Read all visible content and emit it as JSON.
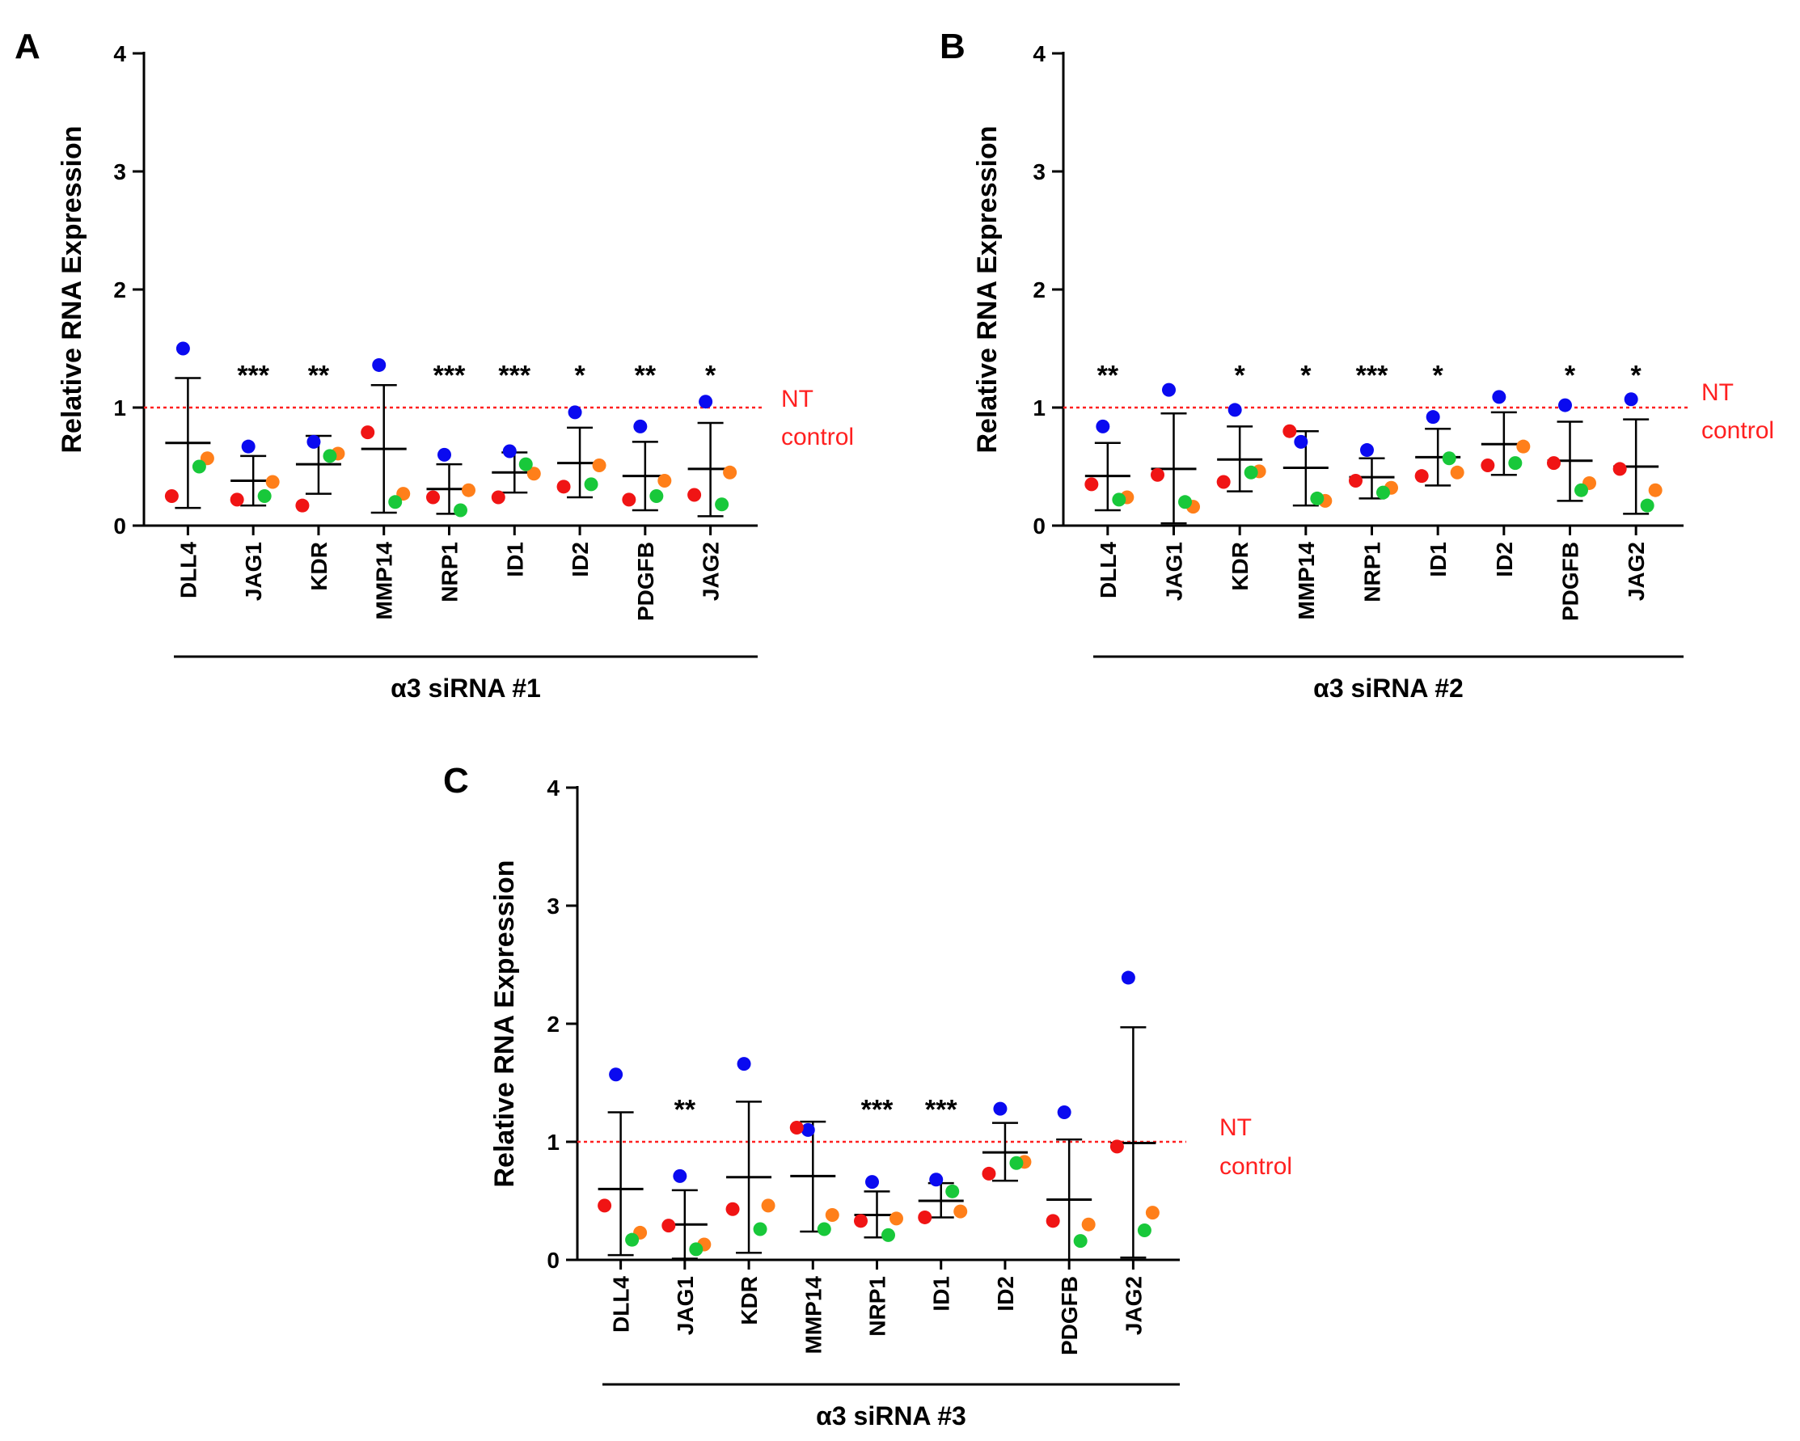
{
  "colors": {
    "replicate_1": "#0a0af0",
    "replicate_2": "#f01414",
    "replicate_3": "#ff7f1a",
    "replicate_4": "#18c83a",
    "reference_line": "#ff2020",
    "axes": "#000000"
  },
  "chart_data": [
    {
      "panel": "A",
      "type": "scatter",
      "title": "",
      "ylabel": "Relative RNA Expression",
      "group_label": "α3 siRNA #1",
      "ylim": [
        0,
        4
      ],
      "yticks": [
        "0",
        "1",
        "2",
        "3",
        "4"
      ],
      "reference_line": {
        "value": 1,
        "label_lines": [
          "NT",
          "control"
        ]
      },
      "categories": [
        "DLL4",
        "JAG1",
        "KDR",
        "MMP14",
        "NRP1",
        "ID1",
        "ID2",
        "PDGFB",
        "JAG2"
      ],
      "mean": [
        0.7,
        0.38,
        0.52,
        0.65,
        0.31,
        0.45,
        0.53,
        0.42,
        0.48
      ],
      "sd_low": [
        0.15,
        0.17,
        0.27,
        0.11,
        0.1,
        0.28,
        0.24,
        0.13,
        0.08
      ],
      "sd_high": [
        1.25,
        0.59,
        0.76,
        1.19,
        0.52,
        0.62,
        0.83,
        0.71,
        0.87
      ],
      "significance": [
        "",
        "***",
        "**",
        "",
        "***",
        "***",
        "*",
        "**",
        "*"
      ],
      "series": [
        {
          "name": "replicate 1",
          "color_key": "replicate_1",
          "values": [
            1.5,
            0.67,
            0.71,
            1.36,
            0.6,
            0.63,
            0.96,
            0.84,
            1.05
          ]
        },
        {
          "name": "replicate 2",
          "color_key": "replicate_2",
          "values": [
            0.25,
            0.22,
            0.17,
            0.79,
            0.24,
            0.24,
            0.33,
            0.22,
            0.26
          ]
        },
        {
          "name": "replicate 3",
          "color_key": "replicate_3",
          "values": [
            0.57,
            0.37,
            0.61,
            0.27,
            0.3,
            0.44,
            0.51,
            0.38,
            0.45
          ]
        },
        {
          "name": "replicate 4",
          "color_key": "replicate_4",
          "values": [
            0.5,
            0.25,
            0.59,
            0.2,
            0.13,
            0.52,
            0.35,
            0.25,
            0.18
          ]
        }
      ]
    },
    {
      "panel": "B",
      "type": "scatter",
      "title": "",
      "ylabel": "Relative RNA Expression",
      "group_label": "α3 siRNA #2",
      "ylim": [
        0,
        4
      ],
      "yticks": [
        "0",
        "1",
        "2",
        "3",
        "4"
      ],
      "reference_line": {
        "value": 1,
        "label_lines": [
          "NT",
          "control"
        ]
      },
      "categories": [
        "DLL4",
        "JAG1",
        "KDR",
        "MMP14",
        "NRP1",
        "ID1",
        "ID2",
        "PDGFB",
        "JAG2"
      ],
      "mean": [
        0.42,
        0.48,
        0.56,
        0.49,
        0.41,
        0.58,
        0.69,
        0.55,
        0.5
      ],
      "sd_low": [
        0.13,
        0.02,
        0.29,
        0.17,
        0.23,
        0.34,
        0.43,
        0.21,
        0.1
      ],
      "sd_high": [
        0.7,
        0.95,
        0.84,
        0.8,
        0.57,
        0.82,
        0.96,
        0.88,
        0.9
      ],
      "significance": [
        "**",
        "",
        "*",
        "*",
        "***",
        "*",
        "",
        "*",
        "*"
      ],
      "series": [
        {
          "name": "replicate 1",
          "color_key": "replicate_1",
          "values": [
            0.84,
            1.15,
            0.98,
            0.71,
            0.64,
            0.92,
            1.09,
            1.02,
            1.07
          ]
        },
        {
          "name": "replicate 2",
          "color_key": "replicate_2",
          "values": [
            0.35,
            0.43,
            0.37,
            0.8,
            0.38,
            0.42,
            0.51,
            0.53,
            0.48
          ]
        },
        {
          "name": "replicate 3",
          "color_key": "replicate_3",
          "values": [
            0.24,
            0.16,
            0.46,
            0.21,
            0.32,
            0.45,
            0.67,
            0.36,
            0.3
          ]
        },
        {
          "name": "replicate 4",
          "color_key": "replicate_4",
          "values": [
            0.22,
            0.2,
            0.45,
            0.23,
            0.28,
            0.57,
            0.53,
            0.3,
            0.17
          ]
        }
      ]
    },
    {
      "panel": "C",
      "type": "scatter",
      "title": "",
      "ylabel": "Relative RNA Expression",
      "group_label": "α3 siRNA #3",
      "ylim": [
        0,
        4
      ],
      "yticks": [
        "0",
        "1",
        "2",
        "3",
        "4"
      ],
      "reference_line": {
        "value": 1,
        "label_lines": [
          "NT",
          "control"
        ]
      },
      "categories": [
        "DLL4",
        "JAG1",
        "KDR",
        "MMP14",
        "NRP1",
        "ID1",
        "ID2",
        "PDGFB",
        "JAG2"
      ],
      "mean": [
        0.6,
        0.3,
        0.7,
        0.71,
        0.38,
        0.5,
        0.91,
        0.51,
        0.99
      ],
      "sd_low": [
        0.04,
        0.01,
        0.06,
        0.24,
        0.19,
        0.36,
        0.67,
        0.0,
        0.02
      ],
      "sd_high": [
        1.25,
        0.59,
        1.34,
        1.17,
        0.58,
        0.65,
        1.16,
        1.02,
        1.97
      ],
      "significance": [
        "",
        "**",
        "",
        "",
        "***",
        "***",
        "",
        "",
        ""
      ],
      "series": [
        {
          "name": "replicate 1",
          "color_key": "replicate_1",
          "values": [
            1.57,
            0.71,
            1.66,
            1.1,
            0.66,
            0.68,
            1.28,
            1.25,
            2.39
          ]
        },
        {
          "name": "replicate 2",
          "color_key": "replicate_2",
          "values": [
            0.46,
            0.29,
            0.43,
            1.12,
            0.33,
            0.36,
            0.73,
            0.33,
            0.96
          ]
        },
        {
          "name": "replicate 3",
          "color_key": "replicate_3",
          "values": [
            0.23,
            0.13,
            0.46,
            0.38,
            0.35,
            0.41,
            0.83,
            0.3,
            0.4
          ]
        },
        {
          "name": "replicate 4",
          "color_key": "replicate_4",
          "values": [
            0.17,
            0.09,
            0.26,
            0.26,
            0.21,
            0.58,
            0.82,
            0.16,
            0.25
          ]
        }
      ]
    }
  ]
}
